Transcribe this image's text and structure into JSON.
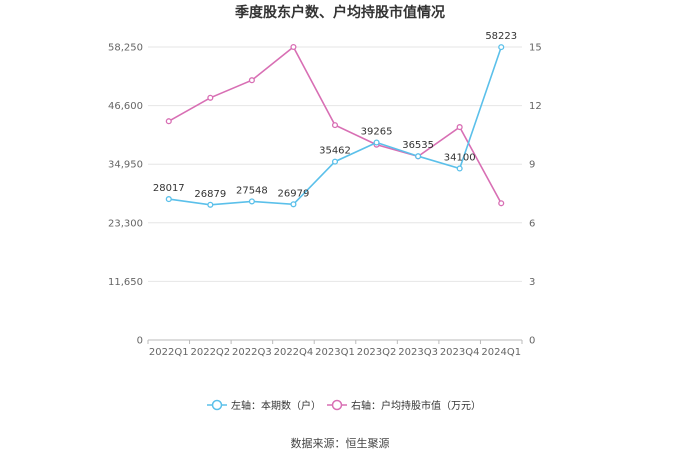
{
  "chart_data": {
    "type": "line",
    "title": "季度股东户数、户均持股市值情况",
    "categories": [
      "2022Q1",
      "2022Q2",
      "2022Q3",
      "2022Q4",
      "2023Q1",
      "2023Q2",
      "2023Q3",
      "2023Q4",
      "2024Q1"
    ],
    "left_axis": {
      "ticks": [
        "0",
        "11,650",
        "23,300",
        "34,950",
        "46,600",
        "58,250"
      ],
      "ylim": [
        0,
        58250
      ]
    },
    "right_axis": {
      "ticks": [
        "0",
        "3",
        "6",
        "9",
        "12",
        "15"
      ],
      "ylim": [
        0,
        15
      ]
    },
    "series": [
      {
        "name": "左轴：本期数（户）",
        "axis": "left",
        "color": "#5bc0ea",
        "values": [
          28017,
          26879,
          27548,
          26979,
          35462,
          39265,
          36535,
          34100,
          58223
        ],
        "labels": [
          "28017",
          "26879",
          "27548",
          "26979",
          "35462",
          "39265",
          "36535",
          "34100",
          "58223"
        ]
      },
      {
        "name": "右轴：户均持股市值（万元）",
        "axis": "right",
        "color": "#d86fb4",
        "values": [
          11.2,
          12.4,
          13.3,
          15.0,
          11.0,
          10.0,
          9.4,
          10.9,
          7.0
        ]
      }
    ],
    "grid": true,
    "legend": "bottom"
  },
  "source": "数据来源：恒生聚源"
}
